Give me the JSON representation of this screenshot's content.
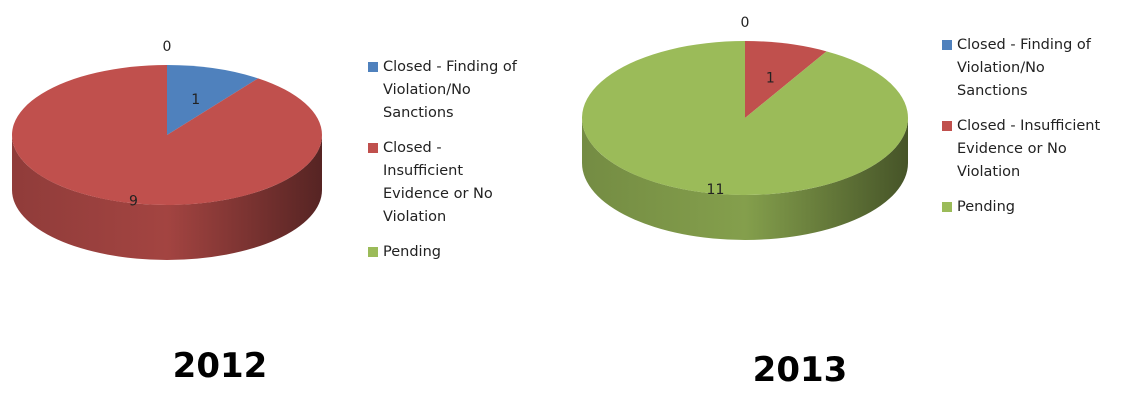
{
  "chart_data": [
    {
      "type": "pie",
      "title": "2012",
      "series": [
        {
          "name": "Closed - Finding of Violation/No Sanctions",
          "color": "#4f81bd"
        },
        {
          "name": "Closed - Insufficient Evidence or No Violation",
          "color": "#c0504d"
        },
        {
          "name": "Pending",
          "color": "#9bbb59"
        }
      ],
      "values": [
        1,
        9,
        0
      ]
    },
    {
      "type": "pie",
      "title": "2013",
      "series": [
        {
          "name": "Closed - Finding of Violation/No Sanctions",
          "color": "#4f81bd"
        },
        {
          "name": "Closed - Insufficient Evidence or No Violation",
          "color": "#c0504d"
        },
        {
          "name": "Pending",
          "color": "#9bbb59"
        }
      ],
      "values": [
        0,
        1,
        11
      ]
    }
  ]
}
